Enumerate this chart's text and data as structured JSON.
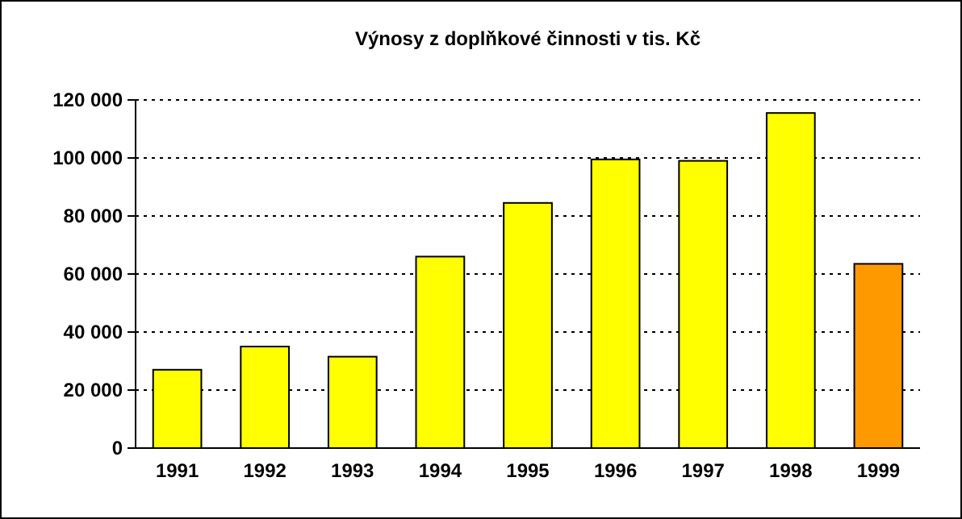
{
  "chart_data": {
    "type": "bar",
    "title": "Výnosy z doplňkové činnosti v tis. Kč",
    "categories": [
      "1991",
      "1992",
      "1993",
      "1994",
      "1995",
      "1996",
      "1997",
      "1998",
      "1999"
    ],
    "values": [
      27000,
      35000,
      31500,
      66000,
      84500,
      99500,
      99000,
      115500,
      63500
    ],
    "colors": [
      "#ffff00",
      "#ffff00",
      "#ffff00",
      "#ffff00",
      "#ffff00",
      "#ffff00",
      "#ffff00",
      "#ffff00",
      "#ff9900"
    ],
    "ylim": [
      0,
      120000
    ],
    "yticks": [
      {
        "value": 0,
        "label": "0"
      },
      {
        "value": 20000,
        "label": "20 000"
      },
      {
        "value": 40000,
        "label": "40 000"
      },
      {
        "value": 60000,
        "label": "60 000"
      },
      {
        "value": 80000,
        "label": "80 000"
      },
      {
        "value": 100000,
        "label": "100 000"
      },
      {
        "value": 120000,
        "label": "120 000"
      }
    ],
    "grid": "y"
  }
}
